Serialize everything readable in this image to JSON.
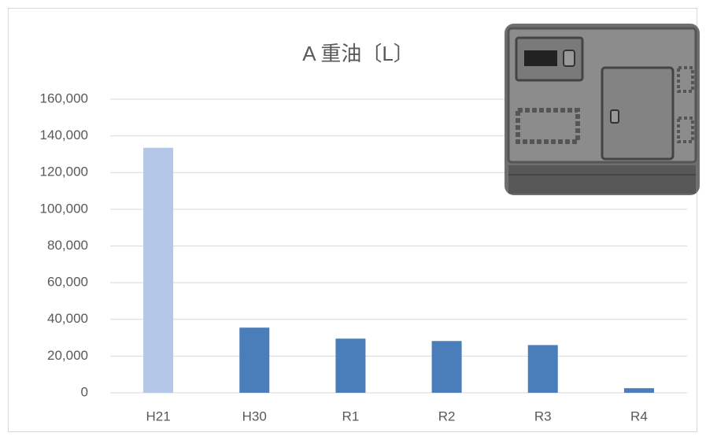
{
  "chart_data": {
    "type": "bar",
    "title": "A 重油〔L〕",
    "categories": [
      "H21",
      "H30",
      "R1",
      "R2",
      "R3",
      "R4"
    ],
    "values": [
      133500,
      35500,
      29500,
      28200,
      26000,
      2500
    ],
    "colors": [
      "#b4c7e7",
      "#4a7ebb",
      "#4a7ebb",
      "#4a7ebb",
      "#4a7ebb",
      "#4a7ebb"
    ],
    "ylim": [
      0,
      160000
    ],
    "yticks": [
      0,
      {
        "value": 20000,
        "label": "20,000"
      },
      {
        "value": 40000,
        "label": "40,000"
      },
      {
        "value": 60000,
        "label": "60,000"
      },
      {
        "value": 80000,
        "label": "80,000"
      },
      {
        "value": 100000,
        "label": "100,000"
      },
      {
        "value": 120000,
        "label": "120,000"
      },
      {
        "value": 140000,
        "label": "140,000"
      },
      {
        "value": 160000,
        "label": "160,000"
      }
    ],
    "grid": true
  }
}
